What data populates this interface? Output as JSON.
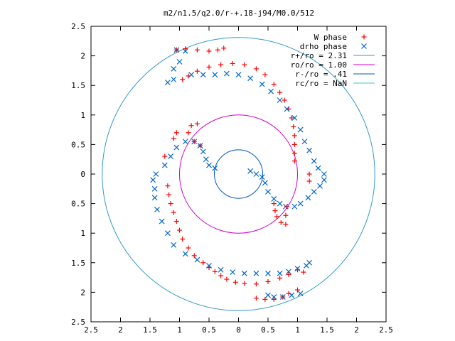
{
  "chart_data": {
    "type": "scatter",
    "title": "m2/n1.5/q2.0/r-+.18-j94/M0.0/512",
    "xlim": [
      -2.5,
      2.5
    ],
    "ylim": [
      -2.5,
      2.5
    ],
    "x_tick_labels": [
      "2.5",
      "2",
      "1.5",
      "1",
      "0.5",
      "0",
      "0.5",
      "1",
      "1.5",
      "2",
      "2.5"
    ],
    "y_tick_labels": [
      "2.5",
      "2",
      "1.5",
      "1",
      "0.5",
      "0",
      "0.5",
      "1",
      "1.5",
      "2",
      "2.5"
    ],
    "legend_position": "top-right",
    "grid": false,
    "series": [
      {
        "name": "W phase",
        "marker": "plus",
        "color": "#ff0000",
        "points": [
          [
            -1.05,
            2.1
          ],
          [
            -0.9,
            2.12
          ],
          [
            -0.7,
            2.1
          ],
          [
            -0.5,
            2.08
          ],
          [
            -0.35,
            2.1
          ],
          [
            -0.25,
            2.13
          ],
          [
            -0.95,
            1.6
          ],
          [
            -0.85,
            1.66
          ],
          [
            -0.7,
            1.74
          ],
          [
            -0.5,
            1.81
          ],
          [
            -0.3,
            1.85
          ],
          [
            -0.1,
            1.87
          ],
          [
            0.1,
            1.85
          ],
          [
            0.3,
            1.78
          ],
          [
            0.45,
            1.68
          ],
          [
            0.6,
            1.52
          ],
          [
            0.7,
            1.38
          ],
          [
            0.78,
            1.25
          ],
          [
            0.85,
            1.1
          ],
          [
            0.9,
            0.95
          ],
          [
            0.93,
            0.8
          ],
          [
            0.95,
            0.65
          ],
          [
            0.95,
            0.5
          ],
          [
            0.95,
            0.35
          ],
          [
            0.95,
            0.22
          ],
          [
            1.2,
            0.0
          ],
          [
            1.2,
            -0.12
          ],
          [
            0.6,
            -0.5
          ],
          [
            0.62,
            -0.62
          ],
          [
            0.65,
            -0.72
          ],
          [
            0.72,
            -0.82
          ],
          [
            0.8,
            -0.85
          ],
          [
            0.8,
            -0.7
          ],
          [
            0.82,
            -0.55
          ],
          [
            -0.7,
            0.85
          ],
          [
            -0.8,
            0.82
          ],
          [
            -0.85,
            0.7
          ],
          [
            -0.75,
            0.55
          ],
          [
            -0.65,
            0.48
          ],
          [
            -1.05,
            0.7
          ],
          [
            -1.1,
            0.6
          ],
          [
            -1.25,
            0.3
          ],
          [
            -1.2,
            -0.2
          ],
          [
            -1.18,
            -0.35
          ],
          [
            -1.15,
            -0.5
          ],
          [
            -1.1,
            -0.65
          ],
          [
            -1.05,
            -0.8
          ],
          [
            -1.0,
            -0.95
          ],
          [
            -0.95,
            -1.1
          ],
          [
            -0.85,
            -1.25
          ],
          [
            -0.75,
            -1.38
          ],
          [
            -0.6,
            -1.5
          ],
          [
            -0.5,
            -1.58
          ],
          [
            -0.4,
            -1.65
          ],
          [
            -0.3,
            -1.72
          ],
          [
            -0.2,
            -1.78
          ],
          [
            -0.05,
            -1.83
          ],
          [
            0.1,
            -1.85
          ],
          [
            0.3,
            -1.86
          ],
          [
            0.5,
            -1.82
          ],
          [
            0.7,
            -1.76
          ],
          [
            0.85,
            -1.7
          ],
          [
            1.0,
            -1.62
          ],
          [
            1.1,
            -1.66
          ],
          [
            0.3,
            -2.1
          ],
          [
            0.45,
            -2.12
          ],
          [
            0.6,
            -2.12
          ],
          [
            0.75,
            -2.08
          ],
          [
            0.85,
            -2.02
          ],
          [
            1.0,
            -1.96
          ]
        ]
      },
      {
        "name": "drho phase",
        "marker": "cross",
        "color": "#0066cc",
        "points": [
          [
            -1.05,
            2.1
          ],
          [
            -0.9,
            2.08
          ],
          [
            -1.1,
            1.6
          ],
          [
            -1.2,
            1.55
          ],
          [
            -1.1,
            1.78
          ],
          [
            -1.0,
            1.9
          ],
          [
            -0.8,
            1.68
          ],
          [
            -0.6,
            1.68
          ],
          [
            -0.4,
            1.68
          ],
          [
            -0.2,
            1.7
          ],
          [
            0.0,
            1.68
          ],
          [
            0.2,
            1.62
          ],
          [
            0.4,
            1.52
          ],
          [
            0.55,
            1.4
          ],
          [
            0.7,
            1.25
          ],
          [
            0.82,
            1.1
          ],
          [
            0.95,
            0.95
          ],
          [
            1.05,
            0.75
          ],
          [
            1.12,
            0.55
          ],
          [
            1.2,
            0.4
          ],
          [
            1.28,
            0.22
          ],
          [
            1.35,
            0.1
          ],
          [
            1.45,
            0.0
          ],
          [
            1.45,
            -0.1
          ],
          [
            1.38,
            -0.2
          ],
          [
            1.28,
            -0.3
          ],
          [
            1.18,
            -0.4
          ],
          [
            1.05,
            -0.5
          ],
          [
            0.95,
            -0.55
          ],
          [
            0.8,
            -0.55
          ],
          [
            0.7,
            -0.5
          ],
          [
            0.6,
            -0.42
          ],
          [
            0.5,
            -0.3
          ],
          [
            0.45,
            -0.15
          ],
          [
            0.4,
            -0.05
          ],
          [
            0.3,
            0.0
          ],
          [
            0.2,
            0.05
          ],
          [
            -0.4,
            0.1
          ],
          [
            -0.5,
            0.15
          ],
          [
            -0.55,
            0.25
          ],
          [
            -0.6,
            0.38
          ],
          [
            -0.65,
            0.48
          ],
          [
            -0.75,
            0.55
          ],
          [
            -0.9,
            0.55
          ],
          [
            -1.05,
            0.45
          ],
          [
            -1.15,
            0.3
          ],
          [
            -1.25,
            0.15
          ],
          [
            -1.4,
            0.0
          ],
          [
            -1.45,
            -0.1
          ],
          [
            -1.42,
            -0.25
          ],
          [
            -1.42,
            -0.4
          ],
          [
            -1.38,
            -0.6
          ],
          [
            -1.3,
            -0.8
          ],
          [
            -1.2,
            -1.0
          ],
          [
            -1.1,
            -1.2
          ],
          [
            -0.9,
            -1.35
          ],
          [
            -0.7,
            -1.45
          ],
          [
            -0.5,
            -1.55
          ],
          [
            -0.3,
            -1.62
          ],
          [
            -0.1,
            -1.66
          ],
          [
            0.1,
            -1.68
          ],
          [
            0.3,
            -1.68
          ],
          [
            0.5,
            -1.68
          ],
          [
            0.7,
            -1.68
          ],
          [
            0.85,
            -1.65
          ],
          [
            1.0,
            -1.6
          ],
          [
            1.15,
            -1.55
          ],
          [
            1.2,
            -1.5
          ],
          [
            0.5,
            -2.05
          ],
          [
            0.6,
            -2.08
          ],
          [
            0.75,
            -2.08
          ],
          [
            0.9,
            -2.05
          ],
          [
            1.05,
            -2.02
          ]
        ]
      }
    ],
    "circles": [
      {
        "name": "r+/ro = 2.31",
        "color": "#3399cc",
        "radius": 2.31
      },
      {
        "name": "ro/ro = 1.00",
        "color": "#cc00cc",
        "radius": 1.0
      },
      {
        "name": "r-/ro = .41",
        "color": "#0055cc",
        "radius": 0.41
      },
      {
        "name": "rc/ro = NaN",
        "color": "#33cccc",
        "radius": null
      }
    ]
  }
}
